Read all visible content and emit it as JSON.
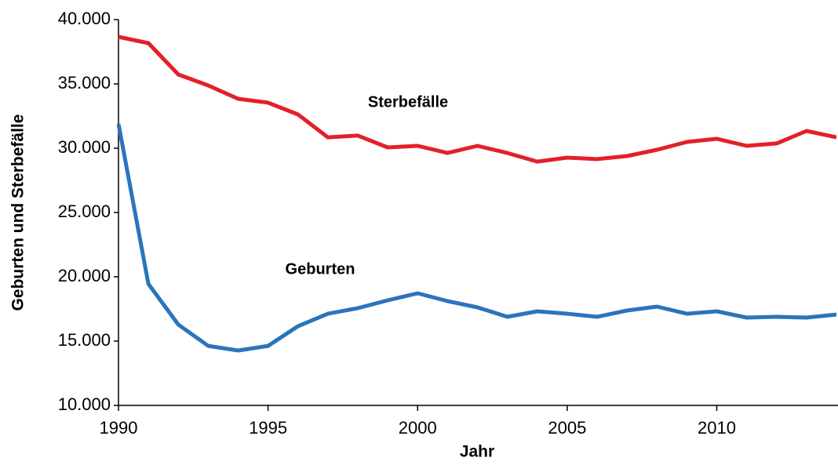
{
  "chart_data": {
    "type": "line",
    "xlabel": "Jahr",
    "ylabel": "Geburten und Sterbefälle",
    "x": [
      1990,
      1991,
      1992,
      1993,
      1994,
      1995,
      1996,
      1997,
      1998,
      1999,
      2000,
      2001,
      2002,
      2003,
      2004,
      2005,
      2006,
      2007,
      2008,
      2009,
      2010,
      2011,
      2012,
      2013,
      2014
    ],
    "series": [
      {
        "name": "Sterbefälle",
        "color": "#e3202a",
        "values": [
          38660,
          38170,
          35730,
          34880,
          33840,
          33540,
          32620,
          30850,
          30980,
          30060,
          30180,
          29630,
          30180,
          29630,
          28960,
          29270,
          29150,
          29390,
          29880,
          30490,
          30730,
          30180,
          30370,
          31340,
          30850
        ]
      },
      {
        "name": "Geburten",
        "color": "#2a75bb",
        "values": [
          31890,
          19450,
          16280,
          14630,
          14270,
          14630,
          16160,
          17130,
          17560,
          18170,
          18720,
          18110,
          17620,
          16890,
          17320,
          17130,
          16890,
          17380,
          17680,
          17130,
          17320,
          16830,
          16890,
          16830,
          17070
        ]
      }
    ],
    "xlim": [
      1990,
      2014
    ],
    "xticks": [
      1990,
      1995,
      2000,
      2005,
      2010
    ],
    "ylim": [
      10000,
      40000
    ],
    "yticks": [
      {
        "value": 10000,
        "label": "10.000"
      },
      {
        "value": 15000,
        "label": "15.000"
      },
      {
        "value": 20000,
        "label": "20.000"
      },
      {
        "value": 25000,
        "label": "25.000"
      },
      {
        "value": 30000,
        "label": "30.000"
      },
      {
        "value": 35000,
        "label": "35.000"
      },
      {
        "value": 40000,
        "label": "40.000"
      }
    ],
    "grid": false
  }
}
